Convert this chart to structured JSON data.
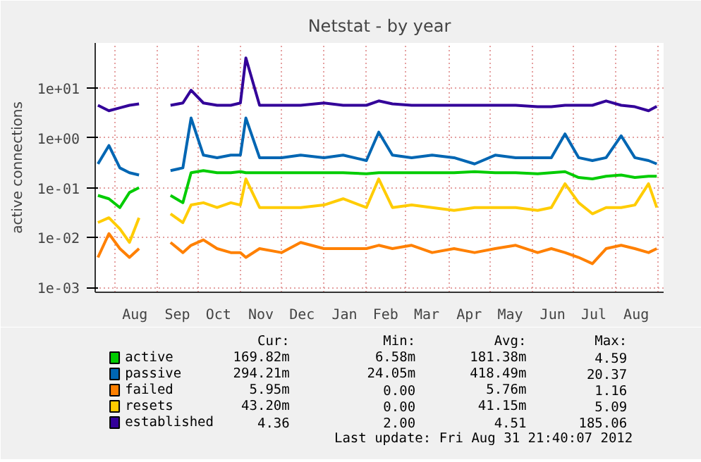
{
  "chart_data": {
    "type": "line",
    "title": "Netstat - by year",
    "ylabel": "active connections",
    "log": true,
    "grid": true,
    "legend": "bottom",
    "line_style": "solid",
    "ylim": [
      0.0008,
      80
    ],
    "yticks": [
      {
        "value": 0.001,
        "label": "1e-03"
      },
      {
        "value": 0.01,
        "label": "1e-02"
      },
      {
        "value": 0.1,
        "label": "1e-01"
      },
      {
        "value": 1,
        "label": "1e+00"
      },
      {
        "value": 10,
        "label": "1e+01"
      }
    ],
    "xlim": [
      "2011-07-18",
      "2012-09-05"
    ],
    "xticks": [
      {
        "value": "2011-08-01",
        "label": null
      },
      {
        "value": "2011-08-16",
        "label": "Aug"
      },
      {
        "value": "2011-09-01",
        "label": null
      },
      {
        "value": "2011-09-16",
        "label": "Sep"
      },
      {
        "value": "2011-10-01",
        "label": null
      },
      {
        "value": "2011-10-16",
        "label": "Oct"
      },
      {
        "value": "2011-11-01",
        "label": null
      },
      {
        "value": "2011-11-16",
        "label": "Nov"
      },
      {
        "value": "2011-12-01",
        "label": null
      },
      {
        "value": "2011-12-16",
        "label": "Dec"
      },
      {
        "value": "2012-01-01",
        "label": null
      },
      {
        "value": "2012-01-16",
        "label": "Jan"
      },
      {
        "value": "2012-02-01",
        "label": null
      },
      {
        "value": "2012-02-15",
        "label": "Feb"
      },
      {
        "value": "2012-03-01",
        "label": null
      },
      {
        "value": "2012-03-16",
        "label": "Mar"
      },
      {
        "value": "2012-04-01",
        "label": null
      },
      {
        "value": "2012-04-16",
        "label": "Apr"
      },
      {
        "value": "2012-05-01",
        "label": null
      },
      {
        "value": "2012-05-16",
        "label": "May"
      },
      {
        "value": "2012-06-01",
        "label": null
      },
      {
        "value": "2012-06-16",
        "label": "Jun"
      },
      {
        "value": "2012-07-01",
        "label": null
      },
      {
        "value": "2012-07-16",
        "label": "Jul"
      },
      {
        "value": "2012-08-01",
        "label": null
      },
      {
        "value": "2012-08-16",
        "label": "Aug"
      },
      {
        "value": "2012-09-01",
        "label": null
      }
    ],
    "x": [
      "2011-07-20",
      "2011-07-28",
      "2011-08-05",
      "2011-08-12",
      "2011-08-19",
      "2011-08-25",
      "2011-09-11",
      "2011-09-20",
      "2011-09-26",
      "2011-10-05",
      "2011-10-15",
      "2011-10-25",
      "2011-11-01",
      "2011-11-05",
      "2011-11-15",
      "2011-12-01",
      "2011-12-15",
      "2012-01-01",
      "2012-01-15",
      "2012-02-01",
      "2012-02-10",
      "2012-02-20",
      "2012-03-05",
      "2012-03-20",
      "2012-04-05",
      "2012-04-20",
      "2012-05-05",
      "2012-05-20",
      "2012-06-05",
      "2012-06-15",
      "2012-06-25",
      "2012-07-05",
      "2012-07-15",
      "2012-07-25",
      "2012-08-05",
      "2012-08-15",
      "2012-08-25",
      "2012-08-31"
    ],
    "series": [
      {
        "name": "active",
        "color": "#00cc00",
        "values": [
          0.07,
          0.06,
          0.04,
          0.08,
          0.1,
          null,
          0.07,
          0.05,
          0.2,
          0.22,
          0.2,
          0.2,
          0.21,
          0.2,
          0.2,
          0.2,
          0.2,
          0.2,
          0.2,
          0.19,
          0.2,
          0.2,
          0.2,
          0.2,
          0.2,
          0.21,
          0.2,
          0.2,
          0.19,
          0.2,
          0.21,
          0.16,
          0.15,
          0.17,
          0.18,
          0.16,
          0.17,
          0.17
        ]
      },
      {
        "name": "passive",
        "color": "#0066b3",
        "values": [
          0.3,
          0.7,
          0.25,
          0.2,
          0.18,
          null,
          0.22,
          0.25,
          2.5,
          0.45,
          0.4,
          0.45,
          0.45,
          2.5,
          0.4,
          0.4,
          0.45,
          0.4,
          0.45,
          0.35,
          1.3,
          0.45,
          0.4,
          0.45,
          0.4,
          0.3,
          0.45,
          0.4,
          0.4,
          0.4,
          1.2,
          0.4,
          0.35,
          0.4,
          1.1,
          0.4,
          0.35,
          0.3
        ]
      },
      {
        "name": "failed",
        "color": "#ff8000",
        "values": [
          0.004,
          0.012,
          0.006,
          0.004,
          0.006,
          null,
          0.008,
          0.005,
          0.007,
          0.009,
          0.006,
          0.005,
          0.005,
          0.004,
          0.006,
          0.005,
          0.008,
          0.006,
          0.006,
          0.006,
          0.007,
          0.006,
          0.007,
          0.005,
          0.006,
          0.005,
          0.006,
          0.007,
          0.005,
          0.006,
          0.005,
          0.004,
          0.003,
          0.006,
          0.007,
          0.006,
          0.005,
          0.006
        ]
      },
      {
        "name": "resets",
        "color": "#ffcc00",
        "values": [
          0.02,
          0.025,
          0.015,
          0.008,
          0.025,
          null,
          0.03,
          0.02,
          0.045,
          0.05,
          0.04,
          0.05,
          0.045,
          0.15,
          0.04,
          0.04,
          0.04,
          0.045,
          0.06,
          0.04,
          0.15,
          0.04,
          0.045,
          0.04,
          0.035,
          0.04,
          0.04,
          0.04,
          0.035,
          0.04,
          0.12,
          0.05,
          0.03,
          0.04,
          0.04,
          0.045,
          0.12,
          0.04
        ]
      },
      {
        "name": "established",
        "color": "#330099",
        "values": [
          4.5,
          3.5,
          4.0,
          4.5,
          4.8,
          null,
          4.5,
          5.0,
          9.0,
          5.0,
          4.5,
          4.5,
          5.0,
          40,
          4.5,
          4.5,
          4.5,
          5.0,
          4.5,
          4.5,
          5.5,
          4.8,
          4.5,
          4.5,
          4.5,
          4.5,
          4.5,
          4.5,
          4.2,
          4.2,
          4.5,
          4.5,
          4.5,
          5.5,
          4.5,
          4.2,
          3.5,
          4.3
        ]
      }
    ],
    "annotations": [
      "Cur:",
      "Min:",
      "Avg:",
      "Max:",
      "169.82m",
      "6.58m",
      "181.38m",
      "4.59",
      "294.21m",
      "24.05m",
      "418.49m",
      "20.37",
      "5.95m",
      "0.00",
      "5.76m",
      "1.16",
      "43.20m",
      "0.00",
      "41.15m",
      "5.09",
      "4.36",
      "2.00",
      "4.51",
      "185.06",
      "Last update: Fri Aug 31 21:40:07 2012"
    ]
  }
}
